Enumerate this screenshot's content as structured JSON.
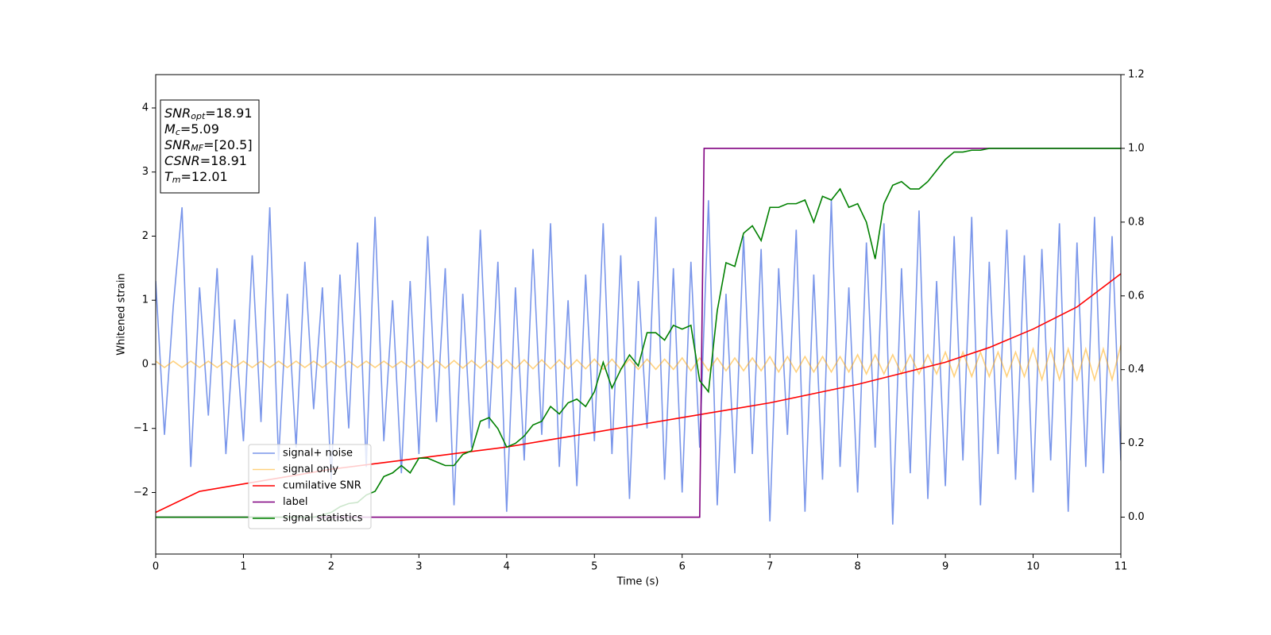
{
  "chart_data": {
    "type": "line",
    "xlabel": "Time (s)",
    "ylabel": "Whitened strain",
    "xlim": [
      0,
      11
    ],
    "xticks": [
      0,
      1,
      2,
      3,
      4,
      5,
      6,
      7,
      8,
      9,
      10,
      11
    ],
    "ylim": [
      -2.96,
      4.52
    ],
    "yticks": [
      {
        "value": -2,
        "label": "−2"
      },
      {
        "value": -1,
        "label": "−1"
      },
      0,
      1,
      2,
      3,
      4
    ],
    "y2lim": [
      -0.1,
      1.2
    ],
    "y2ticks": [
      {
        "value": 0,
        "label": "0.0"
      },
      {
        "value": 0.2,
        "label": "0.2"
      },
      {
        "value": 0.4,
        "label": "0.4"
      },
      {
        "value": 0.6,
        "label": "0.6"
      },
      {
        "value": 0.8,
        "label": "0.8"
      },
      {
        "value": 1.0,
        "label": "1.0"
      },
      {
        "value": 1.2,
        "label": "1.2"
      }
    ],
    "legend_loc": "best",
    "annotation": [
      {
        "base": "SNR",
        "sub": "opt",
        "text": "=18.91"
      },
      {
        "base": "M",
        "sub": "c",
        "text": "=5.09"
      },
      {
        "base": "SNR",
        "sub": "MF",
        "text": "=[20.5]"
      },
      {
        "base": "CSNR",
        "sub": null,
        "text": "=18.91"
      },
      {
        "base": "T",
        "sub": "m",
        "text": "=12.01"
      }
    ],
    "x": [
      0,
      0.1,
      0.2,
      0.3,
      0.4,
      0.5,
      0.6,
      0.7,
      0.8,
      0.9,
      1,
      1.1,
      1.2,
      1.3,
      1.4,
      1.5,
      1.6,
      1.7,
      1.8,
      1.9,
      2,
      2.1,
      2.2,
      2.3,
      2.4,
      2.5,
      2.6,
      2.7,
      2.8,
      2.9,
      3,
      3.1,
      3.2,
      3.3,
      3.4,
      3.5,
      3.6,
      3.7,
      3.8,
      3.9,
      4,
      4.1,
      4.2,
      4.3,
      4.4,
      4.5,
      4.6,
      4.7,
      4.8,
      4.9,
      5,
      5.1,
      5.2,
      5.3,
      5.4,
      5.5,
      5.6,
      5.7,
      5.8,
      5.9,
      6,
      6.1,
      6.2,
      6.3,
      6.4,
      6.5,
      6.6,
      6.7,
      6.8,
      6.9,
      7,
      7.1,
      7.2,
      7.3,
      7.4,
      7.5,
      7.6,
      7.7,
      7.8,
      7.9,
      8,
      8.1,
      8.2,
      8.3,
      8.4,
      8.5,
      8.6,
      8.7,
      8.8,
      8.9,
      9,
      9.1,
      9.2,
      9.3,
      9.4,
      9.5,
      9.6,
      9.7,
      9.8,
      9.9,
      10,
      10.1,
      10.2,
      10.3,
      10.4,
      10.5,
      10.6,
      10.7,
      10.8,
      10.9,
      11
    ],
    "series": [
      {
        "name": "signal+ noise",
        "color": "#4169e1",
        "opacity": 0.7,
        "values": [
          1.3,
          -1.1,
          0.9,
          2.45,
          -1.6,
          1.2,
          -0.8,
          1.5,
          -1.4,
          0.7,
          -1.2,
          1.7,
          -0.9,
          2.45,
          -1.5,
          1.1,
          -1.3,
          1.6,
          -0.7,
          1.2,
          -1.8,
          1.4,
          -1.0,
          1.9,
          -1.6,
          2.3,
          -1.2,
          1.0,
          -1.7,
          1.3,
          -1.4,
          2.0,
          -0.9,
          1.5,
          -2.2,
          1.1,
          -1.3,
          2.1,
          -1.0,
          1.6,
          -2.3,
          1.2,
          -1.5,
          1.8,
          -1.1,
          2.2,
          -1.6,
          1.0,
          -1.9,
          1.4,
          -1.2,
          2.2,
          -1.4,
          1.7,
          -2.1,
          1.3,
          -1.0,
          2.3,
          -1.8,
          1.5,
          -2.0,
          1.6,
          -1.3,
          2.56,
          -2.2,
          1.1,
          -1.7,
          2.0,
          -1.4,
          1.8,
          -2.45,
          1.5,
          -1.1,
          2.1,
          -2.3,
          1.4,
          -1.8,
          2.56,
          -1.6,
          1.2,
          -2.0,
          1.9,
          -1.3,
          2.2,
          -2.5,
          1.5,
          -1.7,
          2.4,
          -2.1,
          1.3,
          -1.9,
          2.0,
          -1.5,
          2.3,
          -2.2,
          1.6,
          -1.4,
          2.1,
          -1.8,
          1.7,
          -2.0,
          1.8,
          -1.5,
          2.2,
          -2.3,
          1.9,
          -1.6,
          2.3,
          -1.7,
          2.0,
          -1.5
        ]
      },
      {
        "name": "signal only",
        "color": "#ffa500",
        "opacity": 0.5,
        "values": [
          0.05,
          -0.05,
          0.05,
          -0.05,
          0.05,
          -0.05,
          0.05,
          -0.05,
          0.05,
          -0.05,
          0.05,
          -0.05,
          0.05,
          -0.05,
          0.05,
          -0.05,
          0.05,
          -0.05,
          0.05,
          -0.05,
          0.05,
          -0.05,
          0.05,
          -0.05,
          0.05,
          -0.05,
          0.05,
          -0.05,
          0.05,
          -0.05,
          0.06,
          -0.06,
          0.06,
          -0.06,
          0.06,
          -0.06,
          0.06,
          -0.06,
          0.06,
          -0.06,
          0.07,
          -0.07,
          0.07,
          -0.07,
          0.07,
          -0.07,
          0.07,
          -0.07,
          0.07,
          -0.07,
          0.08,
          -0.08,
          0.08,
          -0.08,
          0.08,
          -0.08,
          0.08,
          -0.08,
          0.08,
          -0.08,
          0.1,
          -0.1,
          0.1,
          -0.1,
          0.1,
          -0.1,
          0.1,
          -0.1,
          0.1,
          -0.1,
          0.12,
          -0.12,
          0.12,
          -0.12,
          0.12,
          -0.12,
          0.12,
          -0.12,
          0.12,
          -0.12,
          0.15,
          -0.15,
          0.15,
          -0.15,
          0.15,
          -0.15,
          0.15,
          -0.15,
          0.15,
          -0.15,
          0.19,
          -0.19,
          0.19,
          -0.19,
          0.19,
          -0.19,
          0.19,
          -0.19,
          0.19,
          -0.19,
          0.24,
          -0.24,
          0.24,
          -0.24,
          0.24,
          -0.24,
          0.24,
          -0.24,
          0.24,
          -0.24,
          0.3
        ]
      },
      {
        "name": "cumilative SNR",
        "color": "#ff0000",
        "axis": "y2",
        "x": [
          0,
          0.5,
          1,
          1.5,
          2,
          2.5,
          3,
          3.5,
          4,
          4.5,
          5,
          5.5,
          6,
          6.5,
          7,
          7.5,
          8,
          8.5,
          9,
          9.5,
          10,
          10.5,
          11
        ],
        "values": [
          0.013,
          0.07,
          0.09,
          0.11,
          0.13,
          0.145,
          0.16,
          0.175,
          0.19,
          0.21,
          0.23,
          0.25,
          0.27,
          0.29,
          0.31,
          0.335,
          0.36,
          0.39,
          0.42,
          0.46,
          0.51,
          0.57,
          0.66
        ]
      },
      {
        "name": "label",
        "color": "#800080",
        "axis": "y2",
        "x": [
          0,
          6.2,
          6.25,
          11
        ],
        "values": [
          0,
          0,
          1,
          1
        ]
      },
      {
        "name": "signal statistics",
        "color": "#008000",
        "axis": "y2",
        "values": [
          0,
          0,
          0,
          0,
          0,
          0,
          0,
          0,
          0,
          0,
          0,
          0,
          0,
          0,
          0,
          0,
          0,
          0,
          0,
          0.006,
          0.013,
          0.028,
          0.037,
          0.04,
          0.06,
          0.07,
          0.11,
          0.12,
          0.14,
          0.12,
          0.16,
          0.16,
          0.15,
          0.14,
          0.14,
          0.17,
          0.18,
          0.26,
          0.27,
          0.24,
          0.19,
          0.2,
          0.22,
          0.25,
          0.26,
          0.3,
          0.28,
          0.31,
          0.32,
          0.3,
          0.34,
          0.42,
          0.35,
          0.4,
          0.44,
          0.41,
          0.5,
          0.5,
          0.48,
          0.52,
          0.51,
          0.52,
          0.37,
          0.34,
          0.56,
          0.69,
          0.68,
          0.77,
          0.79,
          0.75,
          0.84,
          0.84,
          0.85,
          0.85,
          0.86,
          0.8,
          0.87,
          0.86,
          0.89,
          0.84,
          0.85,
          0.8,
          0.7,
          0.85,
          0.9,
          0.91,
          0.89,
          0.89,
          0.91,
          0.94,
          0.97,
          0.99,
          0.99,
          0.995,
          0.995,
          1,
          1,
          1,
          1,
          1,
          1,
          1,
          1,
          1,
          1,
          1,
          1,
          1,
          1,
          1,
          1
        ]
      }
    ]
  }
}
